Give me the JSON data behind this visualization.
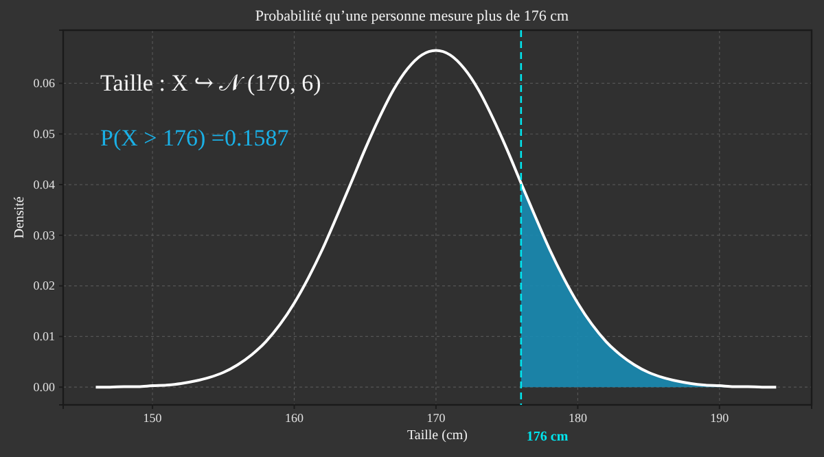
{
  "chart_data": {
    "type": "line",
    "title": "Probabilité qu’une personne mesure plus de 176 cm",
    "xlabel": "Taille (cm)",
    "ylabel": "Densité",
    "annotations": [
      "Taille : X ↪ 𝒩 (170, 6)",
      "P(X > 176) =0.1587"
    ],
    "xlim": [
      143.7,
      196.5
    ],
    "ylim": [
      -0.0035,
      0.0705
    ],
    "xticks": [
      150,
      160,
      170,
      180,
      190
    ],
    "yticks": [
      {
        "value": 0,
        "label": "0.00"
      },
      {
        "value": 0.01,
        "label": "0.01"
      },
      {
        "value": 0.02,
        "label": "0.02"
      },
      {
        "value": 0.03,
        "label": "0.03"
      },
      {
        "value": 0.04,
        "label": "0.04"
      },
      {
        "value": 0.05,
        "label": "0.05"
      },
      {
        "value": 0.06,
        "label": "0.06"
      }
    ],
    "grid": true,
    "line_style": "solid",
    "marker": "none",
    "ref_lines": [
      {
        "axis": "x",
        "value": 176,
        "label": "176 cm",
        "color": "#00e5ee",
        "line_style": "dashed"
      }
    ],
    "series": [
      {
        "type": "area",
        "color": "#1a8cb4",
        "x": [
          176,
          177,
          178,
          179,
          180,
          181,
          182,
          183,
          184,
          185,
          186,
          187,
          188,
          189,
          190,
          191,
          192,
          193,
          194
        ],
        "values": [
          0.0403,
          0.0337,
          0.0273,
          0.0216,
          0.0166,
          0.0124,
          0.009,
          0.0064,
          0.0044,
          0.0029,
          0.0019,
          0.0012,
          0.0007,
          0.0004,
          0.0003,
          0.0001,
          0.0001,
          0.0,
          0.0
        ]
      },
      {
        "color": "#ffffff",
        "x": [
          146,
          147,
          148,
          149,
          150,
          151,
          152,
          153,
          154,
          155,
          156,
          157,
          158,
          159,
          160,
          161,
          162,
          163,
          164,
          165,
          166,
          167,
          168,
          169,
          170,
          171,
          172,
          173,
          174,
          175,
          176,
          177,
          178,
          179,
          180,
          181,
          182,
          183,
          184,
          185,
          186,
          187,
          188,
          189,
          190,
          191,
          192,
          193,
          194
        ],
        "values": [
          0.0,
          0.0,
          0.0001,
          0.0001,
          0.0003,
          0.0004,
          0.0007,
          0.0012,
          0.0019,
          0.0029,
          0.0044,
          0.0064,
          0.009,
          0.0124,
          0.0166,
          0.0216,
          0.0273,
          0.0337,
          0.0403,
          0.047,
          0.0532,
          0.0587,
          0.0629,
          0.0656,
          0.0665,
          0.0656,
          0.0629,
          0.0587,
          0.0532,
          0.047,
          0.0403,
          0.0337,
          0.0273,
          0.0216,
          0.0166,
          0.0124,
          0.009,
          0.0064,
          0.0044,
          0.0029,
          0.0019,
          0.0012,
          0.0007,
          0.0004,
          0.0003,
          0.0001,
          0.0001,
          0.0,
          0.0
        ]
      }
    ]
  }
}
